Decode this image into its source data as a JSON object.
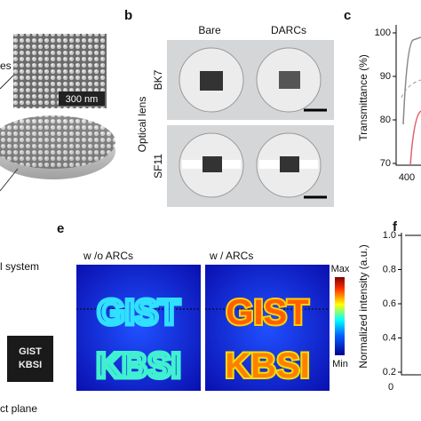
{
  "panel_a": {
    "side_label": "es",
    "scale_bar": "300 nm"
  },
  "panel_b": {
    "letter": "b",
    "columns": [
      "Bare",
      "DARCs"
    ],
    "rows": [
      "BK7",
      "SF11"
    ],
    "group_label": "Optical lens"
  },
  "panel_c": {
    "letter": "c",
    "yticks": [
      "100",
      "90",
      "80",
      "70"
    ],
    "xtick": "400",
    "ylabel": "Transmittance (%)"
  },
  "panel_d": {
    "label_system": "l system",
    "photo_text": [
      "GIST",
      "KBSI"
    ],
    "label_plane": "ct plane"
  },
  "panel_e": {
    "letter": "e",
    "titles": [
      "w /o ARCs",
      "w / ARCs"
    ],
    "image_text": [
      "GIST",
      "KBSI"
    ],
    "colorbar_max": "Max",
    "colorbar_min": "Min"
  },
  "panel_f": {
    "letter": "f",
    "yticks": [
      "1.0",
      "0.8",
      "0.6",
      "0.4",
      "0.2"
    ],
    "xtick": "0",
    "ylabel": "Normalized intensity (a.u.)"
  }
}
